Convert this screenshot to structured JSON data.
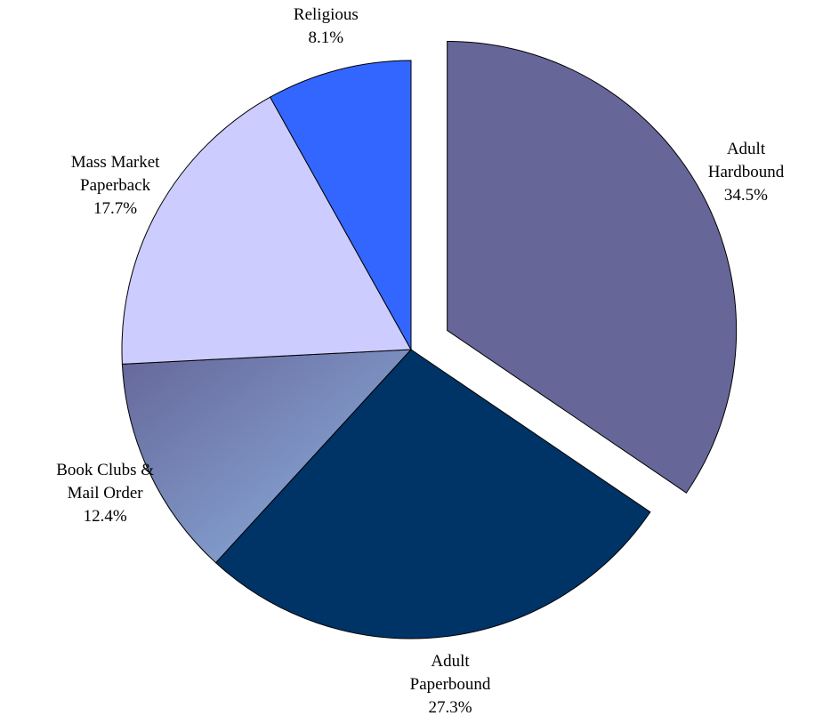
{
  "chart_data": {
    "type": "pie",
    "categories": [
      "Adult Hardbound",
      "Adult Paperbound",
      "Book Clubs & Mail Order",
      "Mass Market Paperback",
      "Religious"
    ],
    "values": [
      34.5,
      27.3,
      12.4,
      17.7,
      8.1
    ],
    "value_labels": [
      "34.5%",
      "27.3%",
      "12.4%",
      "17.7%",
      "8.1%"
    ],
    "colors": [
      "#666699",
      "#003366",
      "#8db4e2",
      "#ccccff",
      "#3366ff"
    ],
    "exploded": [
      true,
      false,
      false,
      false,
      false
    ]
  }
}
